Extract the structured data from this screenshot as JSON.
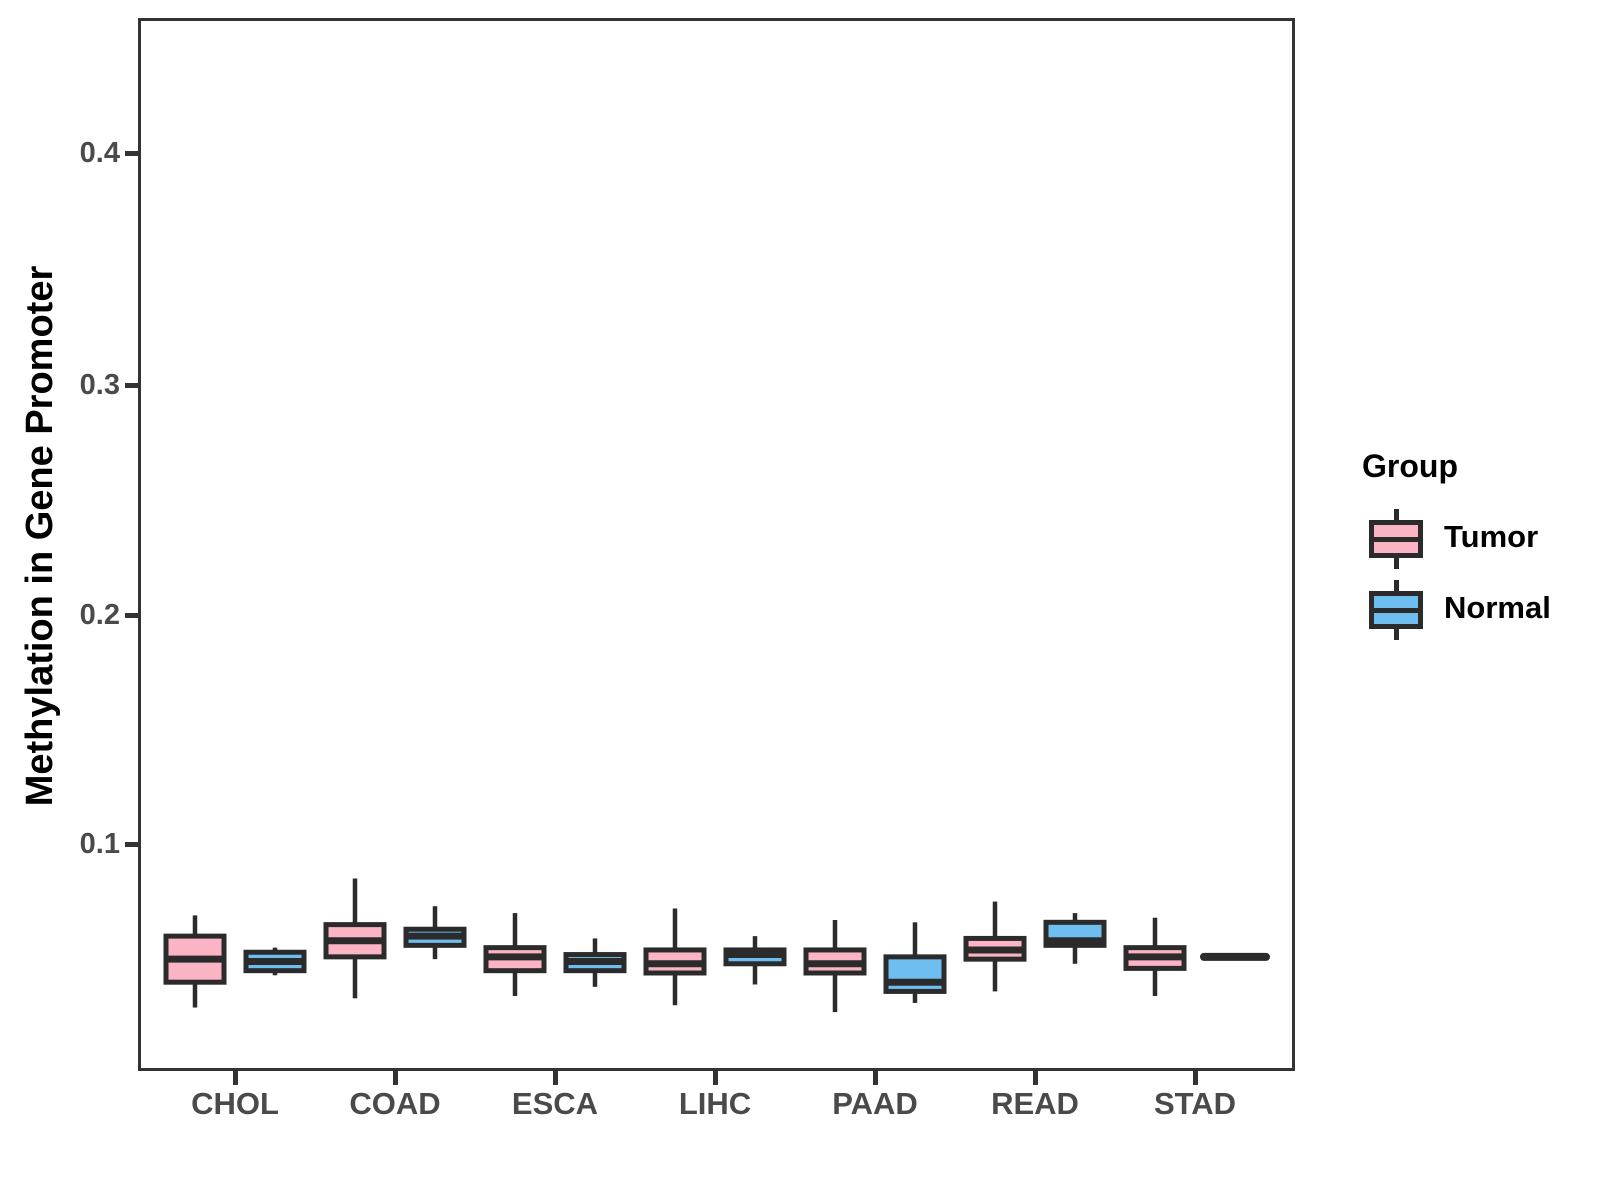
{
  "chart_data": {
    "type": "boxplot",
    "title": "",
    "xlabel": "",
    "ylabel": "Methylation in Gene Promoter",
    "categories": [
      "CHOL",
      "COAD",
      "ESCA",
      "LIHC",
      "PAAD",
      "READ",
      "STAD"
    ],
    "y_tick_labels": [
      "0.1",
      "0.2",
      "0.3",
      "0.4"
    ],
    "y_tick_values": [
      0.1,
      0.2,
      0.3,
      0.4
    ],
    "ylim": [
      0.0,
      0.46
    ],
    "grid": false,
    "legend": {
      "title": "Group",
      "position": "right",
      "entries": [
        {
          "label": "Tumor",
          "color": "#FBB4C4"
        },
        {
          "label": "Normal",
          "color": "#6EBEF0"
        }
      ]
    },
    "colors": {
      "tumor_fill": "#FBB4C4",
      "normal_fill": "#6EBEF0",
      "box_stroke": "#2B2B2B",
      "panel_border": "#333333",
      "axis_text": "#4A4A4A",
      "axis_title": "#000000"
    },
    "series": [
      {
        "name": "Tumor",
        "color": "#FBB4C4",
        "boxes": [
          {
            "category": "CHOL",
            "min": 0.029,
            "q1": 0.04,
            "median": 0.05,
            "q3": 0.06,
            "max": 0.069
          },
          {
            "category": "COAD",
            "min": 0.033,
            "q1": 0.051,
            "median": 0.058,
            "q3": 0.065,
            "max": 0.085
          },
          {
            "category": "ESCA",
            "min": 0.034,
            "q1": 0.045,
            "median": 0.051,
            "q3": 0.055,
            "max": 0.07
          },
          {
            "category": "LIHC",
            "min": 0.03,
            "q1": 0.044,
            "median": 0.048,
            "q3": 0.054,
            "max": 0.072
          },
          {
            "category": "PAAD",
            "min": 0.027,
            "q1": 0.044,
            "median": 0.048,
            "q3": 0.054,
            "max": 0.067
          },
          {
            "category": "READ",
            "min": 0.036,
            "q1": 0.05,
            "median": 0.054,
            "q3": 0.059,
            "max": 0.075
          },
          {
            "category": "STAD",
            "min": 0.034,
            "q1": 0.046,
            "median": 0.051,
            "q3": 0.055,
            "max": 0.068
          }
        ]
      },
      {
        "name": "Normal",
        "color": "#6EBEF0",
        "boxes": [
          {
            "category": "CHOL",
            "min": 0.043,
            "q1": 0.045,
            "median": 0.049,
            "q3": 0.053,
            "max": 0.055
          },
          {
            "category": "COAD",
            "min": 0.05,
            "q1": 0.056,
            "median": 0.06,
            "q3": 0.063,
            "max": 0.073
          },
          {
            "category": "ESCA",
            "min": 0.038,
            "q1": 0.045,
            "median": 0.049,
            "q3": 0.052,
            "max": 0.059
          },
          {
            "category": "LIHC",
            "min": 0.039,
            "q1": 0.048,
            "median": 0.052,
            "q3": 0.054,
            "max": 0.06
          },
          {
            "category": "PAAD",
            "min": 0.031,
            "q1": 0.036,
            "median": 0.04,
            "q3": 0.051,
            "max": 0.066
          },
          {
            "category": "READ",
            "min": 0.048,
            "q1": 0.056,
            "median": 0.058,
            "q3": 0.066,
            "max": 0.07
          },
          {
            "category": "STAD",
            "min": 0.051,
            "q1": 0.051,
            "median": 0.051,
            "q3": 0.051,
            "max": 0.051
          }
        ]
      }
    ]
  }
}
